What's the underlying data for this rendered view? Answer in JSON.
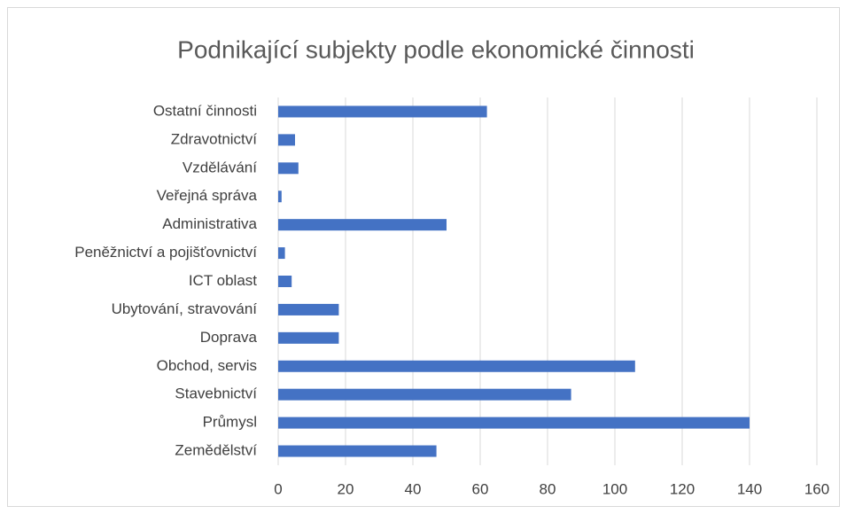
{
  "chart_data": {
    "type": "bar",
    "orientation": "horizontal",
    "title": "Podnikající subjekty podle ekonomické činnosti",
    "categories": [
      "Ostatní činnosti",
      "Zdravotnictví",
      "Vzdělávání",
      "Veřejná správa",
      "Administrativa",
      "Peněžnictví a pojišťovnictví",
      "ICT oblast",
      "Ubytování, stravování",
      "Doprava",
      "Obchod, servis",
      "Stavebnictví",
      "Průmysl",
      "Zemědělství"
    ],
    "values": [
      62,
      5,
      6,
      1,
      50,
      2,
      4,
      18,
      18,
      106,
      87,
      140,
      47
    ],
    "color": "#4472c4",
    "xlim": [
      0,
      160
    ],
    "xticks": [
      0,
      20,
      40,
      60,
      80,
      100,
      120,
      140,
      160
    ],
    "grid": true
  }
}
